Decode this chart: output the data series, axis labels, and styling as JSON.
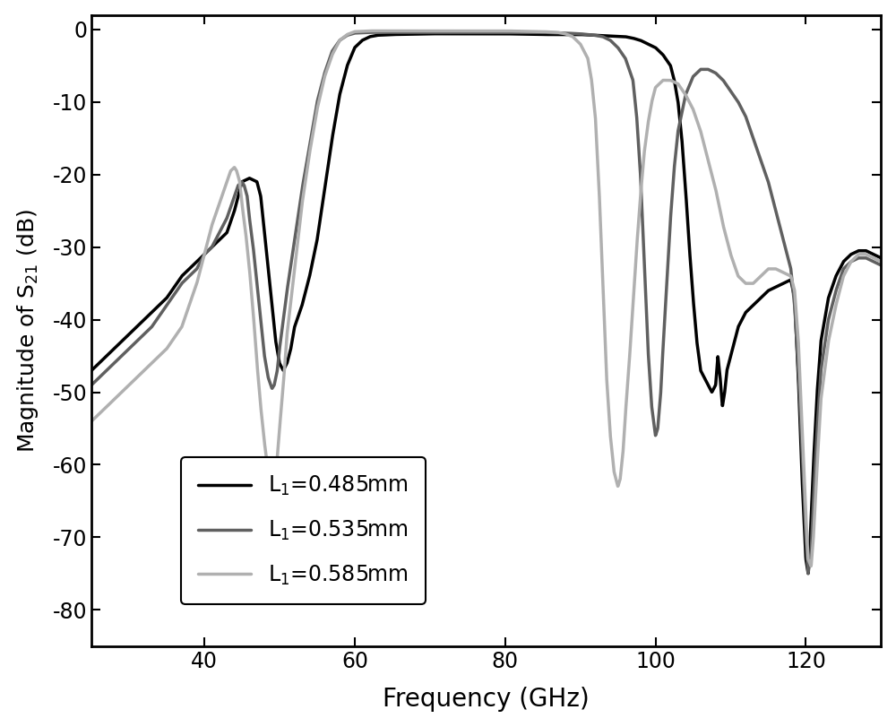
{
  "title": "",
  "xlabel": "Frequency (GHz)",
  "ylabel": "Magnitude of S$_{21}$ (dB)",
  "xlim": [
    25,
    130
  ],
  "ylim": [
    -85,
    2
  ],
  "xticks": [
    40,
    60,
    80,
    100,
    120
  ],
  "yticks": [
    0,
    -10,
    -20,
    -30,
    -40,
    -50,
    -60,
    -70,
    -80
  ],
  "legend_labels": [
    "L$_1$=0.485mm",
    "L$_1$=0.535mm",
    "L$_1$=0.585mm"
  ],
  "colors": [
    "#000000",
    "#606060",
    "#b0b0b0"
  ],
  "linewidths": [
    2.5,
    2.5,
    2.5
  ],
  "background_color": "#ffffff",
  "grid": false
}
